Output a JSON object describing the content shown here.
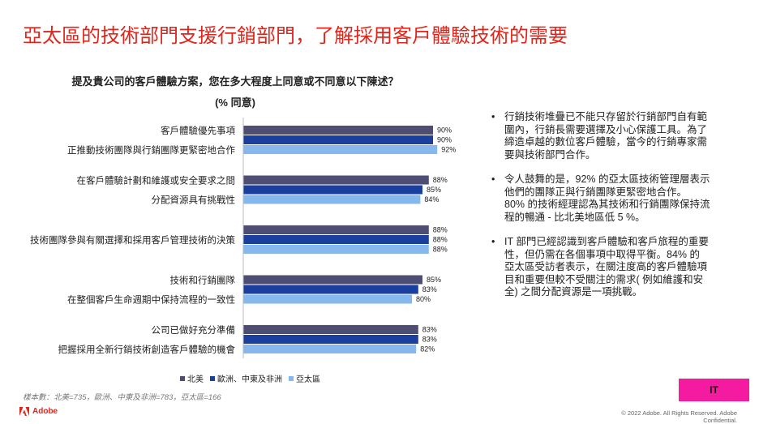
{
  "page": {
    "title": "亞太區的技術部門支援行銷部門，了解採用客戶體驗技術的需要",
    "badge": "IT",
    "brand": "Adobe",
    "copyright": "© 2022 Adobe. All Rights Reserved. Adobe Confidential.",
    "sample_note": "樣本數：北美=735，歐洲、中東及非洲=783，亞太區=166"
  },
  "chart_data": {
    "type": "bar",
    "orientation": "horizontal",
    "title": "提及貴公司的客戶體驗方案，您在多大程度上同意或不同意以下陳述？",
    "subtitle": "(% 同意)",
    "categories": [
      [
        "客戶體驗優先事項",
        "正推動技術團隊與行銷團隊更緊密地合作"
      ],
      [
        "在客戶體驗計劃和維護或安全要求之間",
        "分配資源具有挑戰性"
      ],
      [
        "技術團隊參與有關選擇和採用客戶管理技術的決策"
      ],
      [
        "技術和行銷團隊",
        "在整個客戶生命週期中保持流程的一致性"
      ],
      [
        "公司已做好充分準備",
        "把握採用全新行銷技術創造客戶體驗的機會"
      ]
    ],
    "series": [
      {
        "name": "北美",
        "color": "#4e4e74",
        "values": [
          90,
          88,
          88,
          85,
          83
        ]
      },
      {
        "name": "歐洲、中東及非洲",
        "color": "#1a3f9e",
        "values": [
          90,
          85,
          88,
          83,
          83
        ]
      },
      {
        "name": "亞太區",
        "color": "#86b8ee",
        "values": [
          92,
          84,
          88,
          80,
          82
        ]
      }
    ],
    "value_suffix": "%",
    "xlim": [
      0,
      100
    ],
    "grid": false,
    "legend_position": "bottom"
  },
  "bullets": [
    [
      "行銷技術堆疊已不能只存留於行銷部門自有範",
      "圍內，行銷長需要選擇及小心保護工具。為了",
      "締造卓越的數位客戶體驗，當今的行銷專家需",
      "要與技術部門合作。"
    ],
    [
      "令人鼓舞的是，92% 的亞太區技術管理層表示",
      "他們的團隊正與行銷團隊更緊密地合作。",
      "80% 的技術經理認為其技術和行銷團隊保持流",
      "程的暢通 - 比北美地區低 5 %。"
    ],
    [
      "IT 部門已經認識到客戶體驗和客戶旅程的重要",
      "性，但仍需在各個事項中取得平衡。84% 的",
      "亞太區受訪者表示，在關注度高的客戶體驗項",
      "目和重要但較不受關注的需求( 例如維護和安",
      "全) 之間分配資源是一項挑戰。"
    ]
  ]
}
